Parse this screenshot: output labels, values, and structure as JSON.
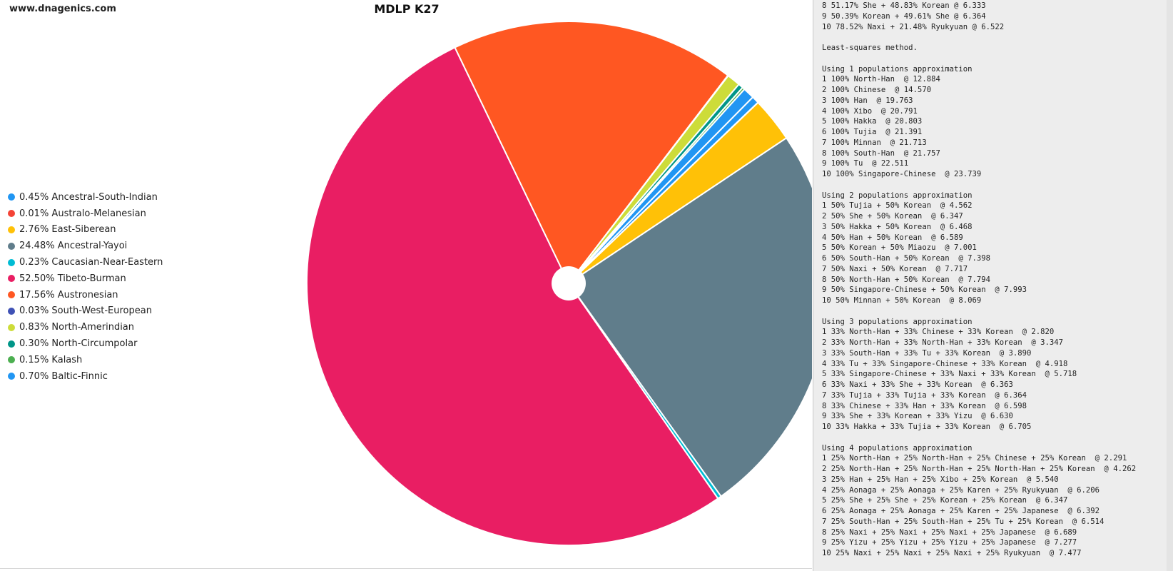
{
  "site": "www.dnagenics.com",
  "chart_data": {
    "type": "pie",
    "title": "MDLP K27",
    "legend_position": "left",
    "donut_hole": true,
    "slices": [
      {
        "label": "Ancestral-South-Indian",
        "legend_text": "0.45% Ancestral-South-Indian",
        "value": 0.45,
        "color": "#2196f3"
      },
      {
        "label": "Australo-Melanesian",
        "legend_text": "0.01% Australo-Melanesian",
        "value": 0.01,
        "color": "#f44336"
      },
      {
        "label": "East-Siberean",
        "legend_text": "2.76% East-Siberean",
        "value": 2.76,
        "color": "#ffc107"
      },
      {
        "label": "Ancestral-Yayoi",
        "legend_text": "24.48% Ancestral-Yayoi",
        "value": 24.48,
        "color": "#607d8b"
      },
      {
        "label": "Caucasian-Near-Eastern",
        "legend_text": "0.23% Caucasian-Near-Eastern",
        "value": 0.23,
        "color": "#00bcd4"
      },
      {
        "label": "Tibeto-Burman",
        "legend_text": "52.50% Tibeto-Burman",
        "value": 52.5,
        "color": "#e91e63"
      },
      {
        "label": "Austronesian",
        "legend_text": "17.56% Austronesian",
        "value": 17.56,
        "color": "#ff5722"
      },
      {
        "label": "South-West-European",
        "legend_text": "0.03% South-West-European",
        "value": 0.03,
        "color": "#3f51b5"
      },
      {
        "label": "North-Amerindian",
        "legend_text": "0.83% North-Amerindian",
        "value": 0.83,
        "color": "#cddc39"
      },
      {
        "label": "North-Circumpolar",
        "legend_text": "0.30% North-Circumpolar",
        "value": 0.3,
        "color": "#009688"
      },
      {
        "label": "Kalash",
        "legend_text": "0.15% Kalash",
        "value": 0.15,
        "color": "#4caf50"
      },
      {
        "label": "Baltic-Finnic",
        "legend_text": "0.70% Baltic-Finnic",
        "value": 0.7,
        "color": "#2196f3"
      }
    ]
  },
  "output_text": "8 51.17% She + 48.83% Korean @ 6.333\n9 50.39% Korean + 49.61% She @ 6.364\n10 78.52% Naxi + 21.48% Ryukyuan @ 6.522\n\nLeast-squares method.\n\nUsing 1 populations approximation\n1 100% North-Han  @ 12.884\n2 100% Chinese  @ 14.570\n3 100% Han  @ 19.763\n4 100% Xibo  @ 20.791\n5 100% Hakka  @ 20.803\n6 100% Tujia  @ 21.391\n7 100% Minnan  @ 21.713\n8 100% South-Han  @ 21.757\n9 100% Tu  @ 22.511\n10 100% Singapore-Chinese  @ 23.739\n\nUsing 2 populations approximation\n1 50% Tujia + 50% Korean  @ 4.562\n2 50% She + 50% Korean  @ 6.347\n3 50% Hakka + 50% Korean  @ 6.468\n4 50% Han + 50% Korean  @ 6.589\n5 50% Korean + 50% Miaozu  @ 7.001\n6 50% South-Han + 50% Korean  @ 7.398\n7 50% Naxi + 50% Korean  @ 7.717\n8 50% North-Han + 50% Korean  @ 7.794\n9 50% Singapore-Chinese + 50% Korean  @ 7.993\n10 50% Minnan + 50% Korean  @ 8.069\n\nUsing 3 populations approximation\n1 33% North-Han + 33% Chinese + 33% Korean  @ 2.820\n2 33% North-Han + 33% North-Han + 33% Korean  @ 3.347\n3 33% South-Han + 33% Tu + 33% Korean  @ 3.890\n4 33% Tu + 33% Singapore-Chinese + 33% Korean  @ 4.918\n5 33% Singapore-Chinese + 33% Naxi + 33% Korean  @ 5.718\n6 33% Naxi + 33% She + 33% Korean  @ 6.363\n7 33% Tujia + 33% Tujia + 33% Korean  @ 6.364\n8 33% Chinese + 33% Han + 33% Korean  @ 6.598\n9 33% She + 33% Korean + 33% Yizu  @ 6.630\n10 33% Hakka + 33% Tujia + 33% Korean  @ 6.705\n\nUsing 4 populations approximation\n1 25% North-Han + 25% North-Han + 25% Chinese + 25% Korean  @ 2.291\n2 25% North-Han + 25% North-Han + 25% North-Han + 25% Korean  @ 4.262\n3 25% Han + 25% Han + 25% Xibo + 25% Korean  @ 5.540\n4 25% Aonaga + 25% Aonaga + 25% Karen + 25% Ryukyuan  @ 6.206\n5 25% She + 25% She + 25% Korean + 25% Korean  @ 6.347\n6 25% Aonaga + 25% Aonaga + 25% Karen + 25% Japanese  @ 6.392\n7 25% South-Han + 25% South-Han + 25% Tu + 25% Korean  @ 6.514\n8 25% Naxi + 25% Naxi + 25% Naxi + 25% Japanese  @ 6.689\n9 25% Yizu + 25% Yizu + 25% Yizu + 25% Japanese  @ 7.277\n10 25% Naxi + 25% Naxi + 25% Naxi + 25% Ryukyuan  @ 7.477"
}
